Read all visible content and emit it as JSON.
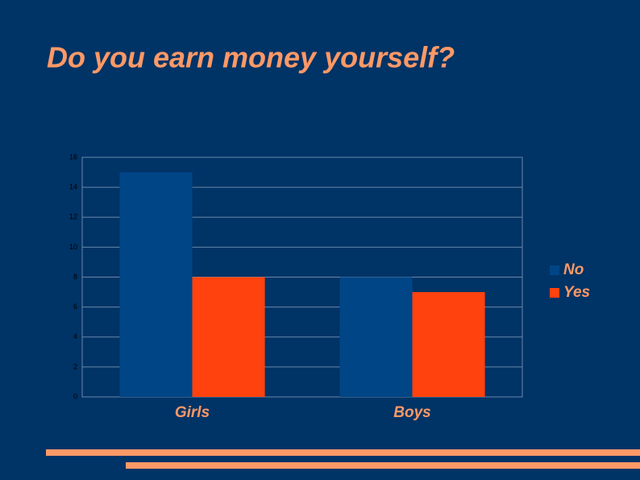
{
  "chart_data": {
    "type": "bar",
    "title": "Do you earn money yourself?",
    "categories": [
      "Girls",
      "Boys"
    ],
    "series": [
      {
        "name": "No",
        "color": "#004586",
        "values": [
          15,
          8
        ]
      },
      {
        "name": "Yes",
        "color": "#ff420e",
        "values": [
          8,
          7
        ]
      }
    ],
    "ylim": [
      0,
      16
    ],
    "yticks": [
      0,
      2,
      4,
      6,
      8,
      10,
      12,
      14,
      16
    ],
    "grid": true,
    "legend": "right"
  }
}
